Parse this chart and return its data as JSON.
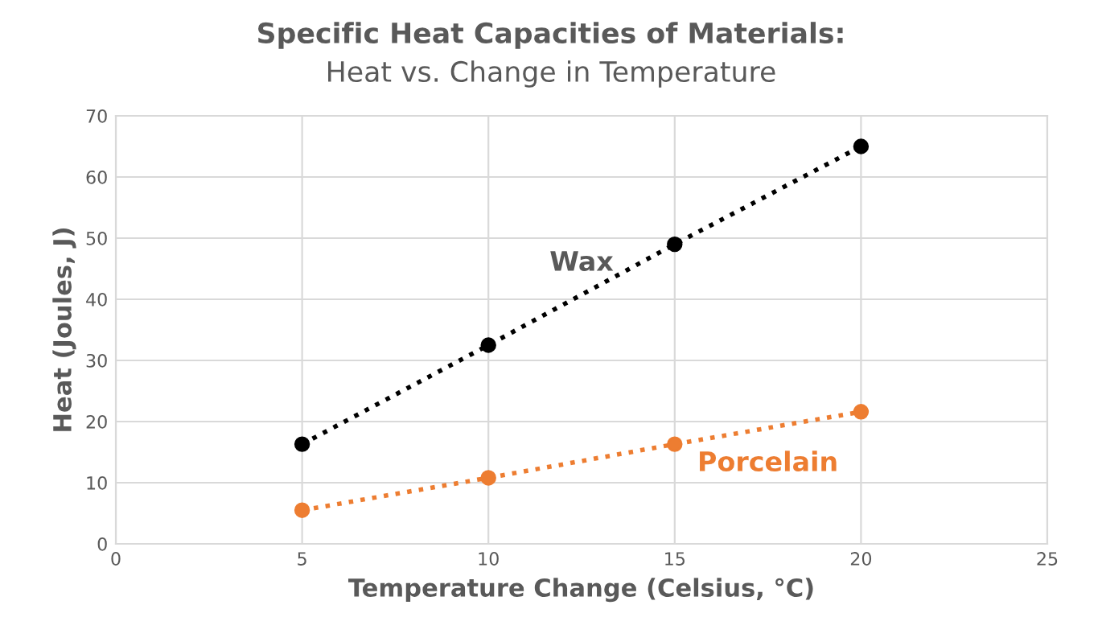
{
  "chart_data": {
    "type": "line",
    "title": "Specific Heat Capacities of Materials:",
    "subtitle": "Heat vs. Change in Temperature",
    "xlabel": "Temperature Change (Celsius, °C)",
    "ylabel": "Heat (Joules, J)",
    "x": [
      5,
      10,
      15,
      20
    ],
    "series": [
      {
        "name": "Wax",
        "color": "#000000",
        "values": [
          16.3,
          32.5,
          49,
          65
        ]
      },
      {
        "name": "Porcelain",
        "color": "#ed7d31",
        "values": [
          5.5,
          10.8,
          16.3,
          21.6
        ]
      }
    ],
    "xlim": [
      0,
      25
    ],
    "xticks": [
      0,
      5,
      10,
      15,
      20,
      25
    ],
    "ylim": [
      0,
      70
    ],
    "yticks": [
      0,
      10,
      20,
      30,
      40,
      50,
      60,
      70
    ],
    "grid": true,
    "legend": false,
    "marker": "circle",
    "line_style": "dotted"
  }
}
